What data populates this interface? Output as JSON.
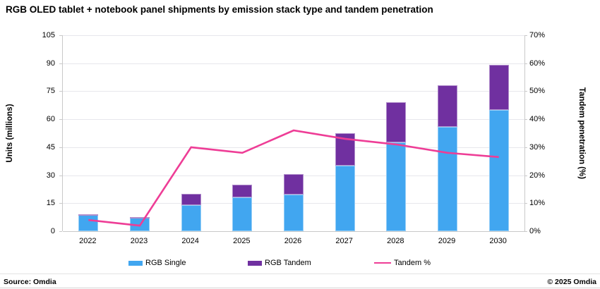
{
  "title": "RGB OLED tablet + notebook panel shipments by emission stack type and tandem penetration",
  "footer": {
    "source": "Source: Omdia",
    "copyright": "© 2025 Omdia"
  },
  "colors": {
    "rgb_single": "#41a6f0",
    "rgb_tandem": "#7030a0",
    "tandem_line": "#ee3d96",
    "gridline": "#e7e7ec",
    "axis_line": "#c9c9c9"
  },
  "chart_data": {
    "type": "bar",
    "subtype": "stacked-bars-with-secondary-line",
    "title": "RGB OLED tablet + notebook panel shipments by emission stack type and tandem penetration",
    "categories": [
      "2022",
      "2023",
      "2024",
      "2025",
      "2026",
      "2027",
      "2028",
      "2029",
      "2030"
    ],
    "series": [
      {
        "name": "RGB Single",
        "type": "bar",
        "axis": "left",
        "color": "#41a6f0",
        "values": [
          8.7,
          7.3,
          14,
          18,
          19.5,
          35,
          47.5,
          56,
          65
        ]
      },
      {
        "name": "RGB Tandem",
        "type": "bar",
        "axis": "left",
        "color": "#7030a0",
        "values": [
          0.4,
          0.2,
          6,
          7,
          11,
          17.5,
          21.5,
          22,
          24
        ]
      },
      {
        "name": "Tandem %",
        "type": "line",
        "axis": "right",
        "color": "#ee3d96",
        "values": [
          4,
          2,
          30,
          28,
          36,
          33,
          31,
          28,
          26.5
        ]
      }
    ],
    "left_axis": {
      "label": "Units (millions)",
      "min": 0,
      "max": 105,
      "step": 15,
      "ticks": [
        "0",
        "15",
        "30",
        "45",
        "60",
        "75",
        "90",
        "105"
      ]
    },
    "right_axis": {
      "label": "Tandem penetration (%)",
      "min": 0,
      "max": 70,
      "step": 10,
      "ticks": [
        "0%",
        "10%",
        "20%",
        "30%",
        "40%",
        "50%",
        "60%",
        "70%"
      ]
    },
    "legend": {
      "position": "bottom",
      "entries": [
        "RGB Single",
        "RGB Tandem",
        "Tandem %"
      ]
    },
    "grid": true
  }
}
